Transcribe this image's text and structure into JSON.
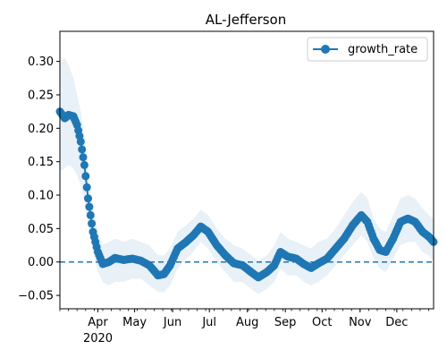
{
  "chart_data": {
    "type": "line",
    "title": "AL-Jefferson",
    "xlabel": "",
    "ylabel": "",
    "x_date_start": "2020-03-01",
    "x_date_end": "2020-12-31",
    "ylim": [
      -0.07,
      0.345
    ],
    "grid": false,
    "legend_placement": "top-right",
    "colors": {
      "line": "#1f77b4",
      "band": "#1f77b4",
      "zero_line": "#1f77b4"
    },
    "y_ticks": [
      "0.30",
      "0.25",
      "0.20",
      "0.15",
      "0.10",
      "0.05",
      "0.00",
      "−0.05"
    ],
    "y_tick_values": [
      0.3,
      0.25,
      0.2,
      0.15,
      0.1,
      0.05,
      0.0,
      -0.05
    ],
    "x_ticks": [
      {
        "date": "2020-04-01",
        "label": "Apr",
        "sublabel": "2020"
      },
      {
        "date": "2020-05-01",
        "label": "May",
        "sublabel": ""
      },
      {
        "date": "2020-06-01",
        "label": "Jun",
        "sublabel": ""
      },
      {
        "date": "2020-07-01",
        "label": "Jul",
        "sublabel": ""
      },
      {
        "date": "2020-08-01",
        "label": "Aug",
        "sublabel": ""
      },
      {
        "date": "2020-09-01",
        "label": "Sep",
        "sublabel": ""
      },
      {
        "date": "2020-10-01",
        "label": "Oct",
        "sublabel": ""
      },
      {
        "date": "2020-11-01",
        "label": "Nov",
        "sublabel": ""
      },
      {
        "date": "2020-12-01",
        "label": "Dec",
        "sublabel": ""
      }
    ],
    "reference_line_y": 0.0,
    "series": [
      {
        "name": "growth_rate",
        "points": [
          [
            "2020-03-01",
            0.225,
            0.135,
            0.3
          ],
          [
            "2020-03-05",
            0.215,
            0.14,
            0.305
          ],
          [
            "2020-03-08",
            0.22,
            0.145,
            0.295
          ],
          [
            "2020-03-12",
            0.218,
            0.14,
            0.275
          ],
          [
            "2020-03-15",
            0.205,
            0.13,
            0.25
          ],
          [
            "2020-03-18",
            0.18,
            0.115,
            0.225
          ],
          [
            "2020-03-21",
            0.145,
            0.09,
            0.19
          ],
          [
            "2020-03-24",
            0.095,
            0.055,
            0.14
          ],
          [
            "2020-03-28",
            0.045,
            0.015,
            0.08
          ],
          [
            "2020-04-01",
            0.015,
            -0.015,
            0.045
          ],
          [
            "2020-04-05",
            -0.003,
            -0.03,
            0.025
          ],
          [
            "2020-04-10",
            0.0,
            -0.035,
            0.03
          ],
          [
            "2020-04-15",
            0.006,
            -0.03,
            0.035
          ],
          [
            "2020-04-22",
            0.003,
            -0.03,
            0.03
          ],
          [
            "2020-04-29",
            0.005,
            -0.025,
            0.035
          ],
          [
            "2020-05-06",
            0.002,
            -0.025,
            0.03
          ],
          [
            "2020-05-13",
            -0.005,
            -0.035,
            0.025
          ],
          [
            "2020-05-20",
            -0.02,
            -0.045,
            0.01
          ],
          [
            "2020-05-25",
            -0.018,
            -0.045,
            0.01
          ],
          [
            "2020-05-30",
            -0.005,
            -0.035,
            0.02
          ],
          [
            "2020-06-05",
            0.02,
            -0.01,
            0.045
          ],
          [
            "2020-06-12",
            0.03,
            0.005,
            0.055
          ],
          [
            "2020-06-18",
            0.04,
            0.015,
            0.065
          ],
          [
            "2020-06-24",
            0.053,
            0.03,
            0.078
          ],
          [
            "2020-06-30",
            0.045,
            0.02,
            0.07
          ],
          [
            "2020-07-07",
            0.025,
            0.0,
            0.05
          ],
          [
            "2020-07-14",
            0.01,
            -0.015,
            0.035
          ],
          [
            "2020-07-21",
            -0.002,
            -0.03,
            0.025
          ],
          [
            "2020-07-28",
            -0.005,
            -0.03,
            0.02
          ],
          [
            "2020-08-04",
            -0.015,
            -0.04,
            0.01
          ],
          [
            "2020-08-10",
            -0.023,
            -0.048,
            0.002
          ],
          [
            "2020-08-17",
            -0.015,
            -0.04,
            0.01
          ],
          [
            "2020-08-23",
            -0.005,
            -0.03,
            0.025
          ],
          [
            "2020-08-28",
            0.015,
            -0.01,
            0.045
          ],
          [
            "2020-09-03",
            0.008,
            -0.02,
            0.035
          ],
          [
            "2020-09-10",
            0.005,
            -0.02,
            0.03
          ],
          [
            "2020-09-16",
            -0.003,
            -0.03,
            0.025
          ],
          [
            "2020-09-22",
            -0.009,
            -0.035,
            0.02
          ],
          [
            "2020-09-28",
            -0.002,
            -0.03,
            0.03
          ],
          [
            "2020-10-05",
            0.005,
            -0.02,
            0.035
          ],
          [
            "2020-10-12",
            0.02,
            -0.005,
            0.05
          ],
          [
            "2020-10-19",
            0.035,
            0.01,
            0.07
          ],
          [
            "2020-10-26",
            0.055,
            0.025,
            0.09
          ],
          [
            "2020-11-02",
            0.07,
            0.04,
            0.105
          ],
          [
            "2020-11-07",
            0.06,
            0.03,
            0.095
          ],
          [
            "2020-11-12",
            0.035,
            0.005,
            0.065
          ],
          [
            "2020-11-17",
            0.018,
            -0.01,
            0.05
          ],
          [
            "2020-11-22",
            0.015,
            -0.015,
            0.045
          ],
          [
            "2020-11-28",
            0.035,
            0.005,
            0.07
          ],
          [
            "2020-12-04",
            0.06,
            0.025,
            0.095
          ],
          [
            "2020-12-10",
            0.065,
            0.03,
            0.1
          ],
          [
            "2020-12-16",
            0.06,
            0.03,
            0.095
          ],
          [
            "2020-12-22",
            0.045,
            0.015,
            0.08
          ],
          [
            "2020-12-27",
            0.038,
            0.01,
            0.07
          ],
          [
            "2020-12-31",
            0.03,
            0.0,
            0.065
          ]
        ]
      }
    ]
  }
}
